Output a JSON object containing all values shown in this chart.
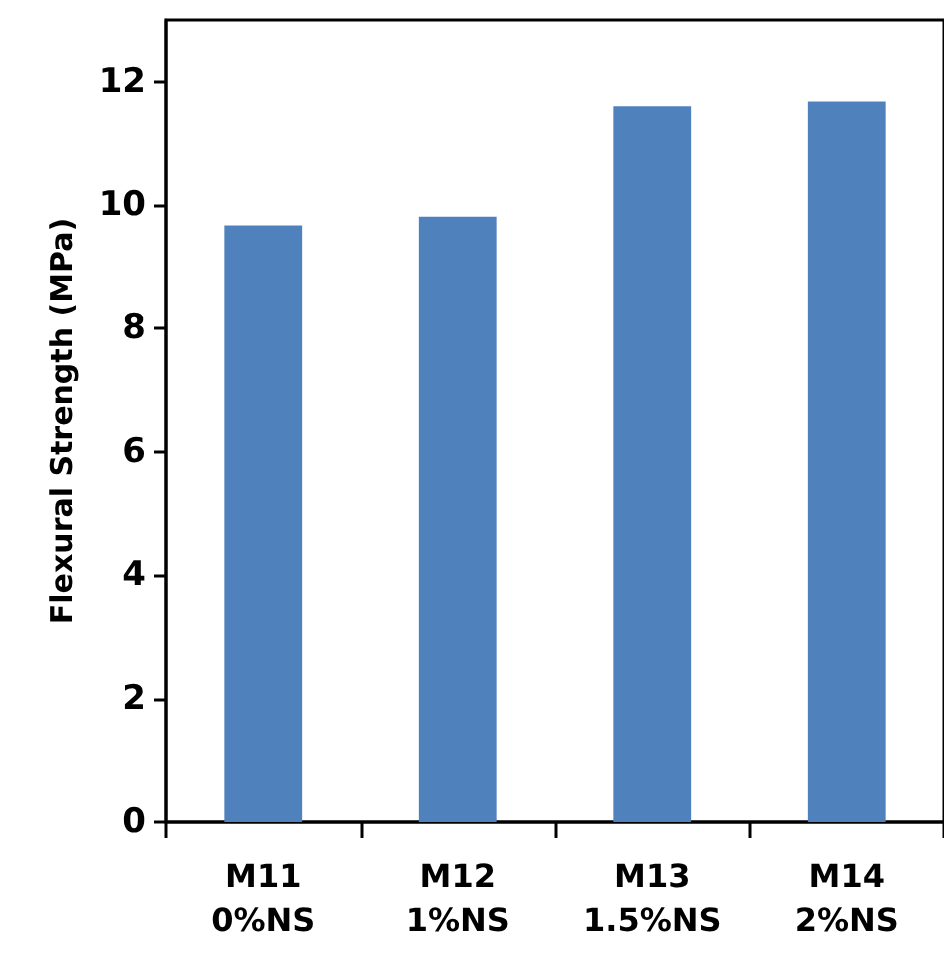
{
  "chart_data": {
    "type": "bar",
    "ylabel": "Flexural Strength (MPa)",
    "categories": [
      "M11\n0%NS",
      "M12\n1%NS",
      "M13\n1.5%NS",
      "M14\n2%NS"
    ],
    "values": [
      9.67,
      9.81,
      11.6,
      11.68
    ],
    "color": "#4f81bd",
    "ylim": [
      0,
      13
    ],
    "yticks": [
      0,
      2,
      4,
      6,
      8,
      10,
      12
    ]
  }
}
